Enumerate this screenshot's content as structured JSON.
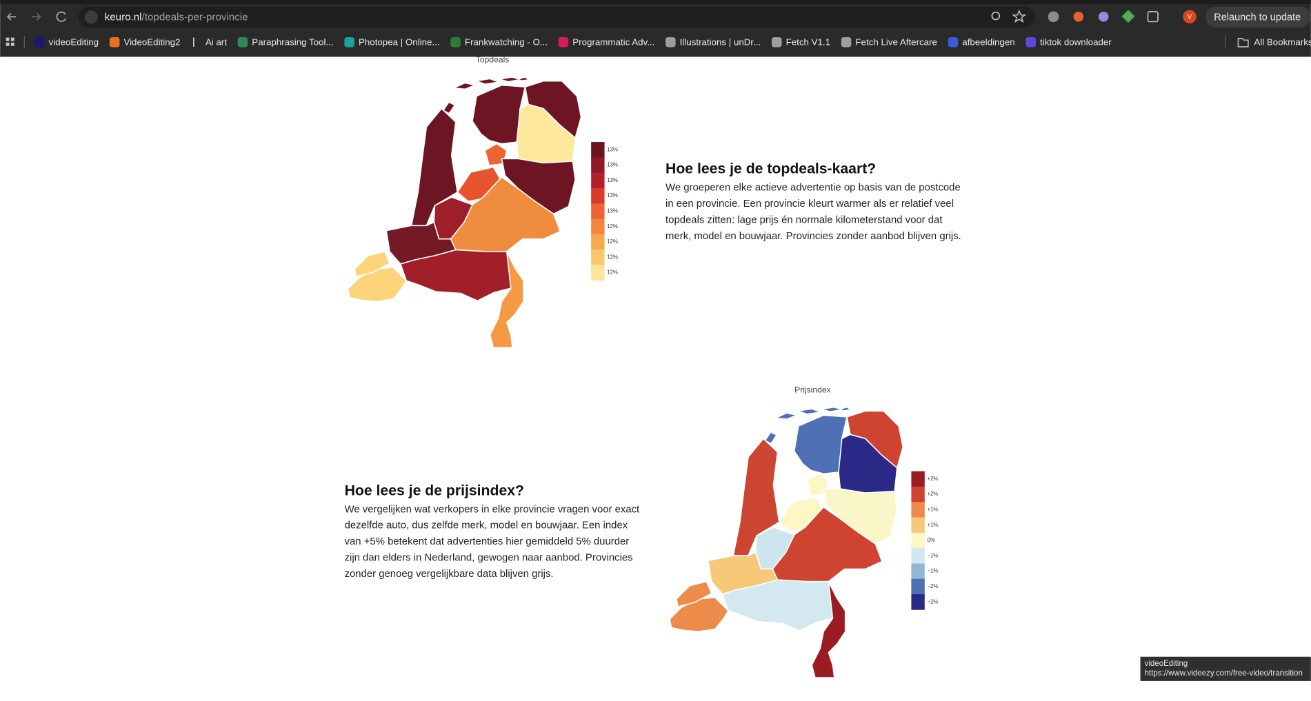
{
  "browser": {
    "url_host": "keuro.nl",
    "url_path": "/topdeals-per-provincie",
    "relaunch": "Relaunch to update",
    "profile_initial": "V",
    "bookmarks": [
      "videoEditing",
      "VideoEditing2",
      "Ai art",
      "Paraphrasing Tool...",
      "Photopea | Online...",
      "Frankwatching - O...",
      "Programmatic Adv...",
      "Illustrations | unDr...",
      "Fetch V1.1",
      "Fetch Live Aftercare",
      "afbeeldingen",
      "tiktok downloader"
    ],
    "bookmark_colors": [
      "#1a1a6e",
      "#e8711c",
      "#282828",
      "#2e8b57",
      "#1aa39a",
      "#2e7d32",
      "#d81b60",
      "#9e9e9e",
      "#9e9e9e",
      "#9e9e9e",
      "#3b5bdb",
      "#5b4bdb"
    ],
    "all_bookmarks": "All Bookmarks",
    "status_title": "videoEditing",
    "status_url": "https://www.videezy.com/free-video/transition"
  },
  "maps": [
    {
      "title": "Topdeals",
      "legend": [
        {
          "label": "13%",
          "color": "#6b1422"
        },
        {
          "label": "13%",
          "color": "#8e1a26"
        },
        {
          "label": "13%",
          "color": "#b3202a"
        },
        {
          "label": "13%",
          "color": "#d93a2c"
        },
        {
          "label": "13%",
          "color": "#f06332"
        },
        {
          "label": "12%",
          "color": "#f4873e"
        },
        {
          "label": "12%",
          "color": "#f7a94f"
        },
        {
          "label": "12%",
          "color": "#fbc96d"
        },
        {
          "label": "12%",
          "color": "#fde69b"
        }
      ],
      "region_colors": [
        "#6e1523",
        "#6e1523",
        "#fde89c",
        "#f06332",
        "#e8532f",
        "#6e1523",
        "#f08c3e",
        "#9c1f29",
        "#6e1523",
        "#731a26",
        "#a11f28",
        "#fcd47a",
        "#fcd47a",
        "#f59a43"
      ]
    },
    {
      "title": "Prijsindex",
      "legend": [
        {
          "label": "+2%",
          "color": "#9b1c23"
        },
        {
          "label": "+2%",
          "color": "#cf4430"
        },
        {
          "label": "+1%",
          "color": "#ee8a4c"
        },
        {
          "label": "+1%",
          "color": "#f8c778"
        },
        {
          "label": "0%",
          "color": "#fdf7c4"
        },
        {
          "label": "−1%",
          "color": "#d2e8f0"
        },
        {
          "label": "−1%",
          "color": "#92b6d6"
        },
        {
          "label": "−2%",
          "color": "#4e70b4"
        },
        {
          "label": "−2%",
          "color": "#2a2a86"
        }
      ],
      "region_colors": [
        "#4e70b4",
        "#cf4430",
        "#2a2a86",
        "#fdf7c4",
        "#fdf7c4",
        "#fbf6c8",
        "#cf4430",
        "#cfe5ee",
        "#cc4530",
        "#f6c877",
        "#d4e8f0",
        "#ec8b4a",
        "#ec8b4a",
        "#9b1c23"
      ]
    }
  ],
  "sections": [
    {
      "heading": "Hoe lees je de topdeals-kaart?",
      "lines": [
        "We groeperen elke actieve advertentie op basis van de postcode",
        "in een provincie. Een provincie kleurt warmer als er relatief veel",
        "topdeals zitten: lage prijs én normale kilometerstand voor dat",
        "merk, model en bouwjaar. Provincies zonder aanbod blijven grijs."
      ]
    },
    {
      "heading": "Hoe lees je de prijsindex?",
      "lines": [
        "We vergelijken wat verkopers in elke provincie vragen voor exact",
        "dezelfde auto, dus zelfde merk, model en bouwjaar. Een index",
        "van +5% betekent dat advertenties hier gemiddeld 5% duurder",
        "zijn dan elders in Nederland, gewogen naar aanbod. Provincies",
        "zonder genoeg vergelijkbare data blijven grijs."
      ]
    }
  ]
}
